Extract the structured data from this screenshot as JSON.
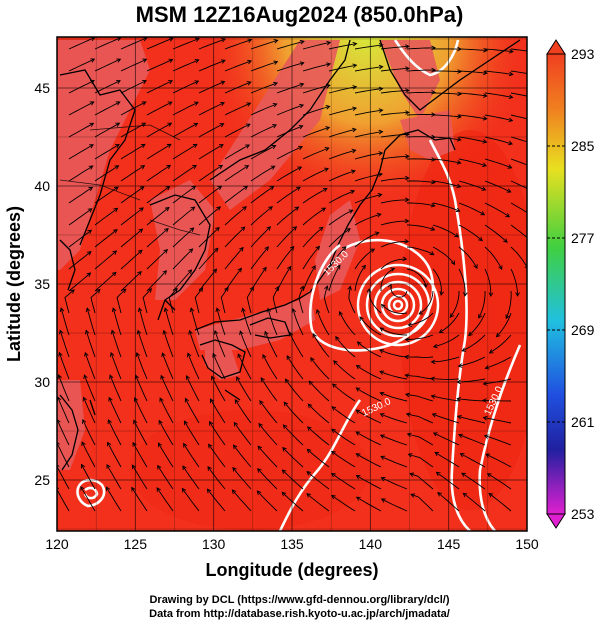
{
  "title": "MSM 12Z16Aug2024 (850.0hPa)",
  "map": {
    "xlabel": "Longitude (degrees)",
    "ylabel": "Latitude  (degrees)",
    "lon_ticks": [
      "120",
      "125",
      "130",
      "135",
      "140",
      "145",
      "150"
    ],
    "lat_ticks": [
      "25",
      "30",
      "35",
      "40",
      "45"
    ],
    "lon_range": [
      120,
      150
    ],
    "lat_range": [
      22.4,
      47.6
    ],
    "colorbar": {
      "min": 253,
      "max": 293,
      "ticks": [
        "293",
        "285",
        "277",
        "269",
        "261",
        "253"
      ]
    },
    "contour_labels": [
      "1530.0",
      "1530.0",
      "1530.0"
    ],
    "typhoon_center": {
      "lon": 142.0,
      "lat": 34.8
    },
    "colors": {
      "field_main": "#f2301c",
      "field_warm_sea": "#ef2a14",
      "land": "#e85a5a",
      "cool_north": "#f08a2a",
      "coldest_north": "#d7e83a"
    }
  },
  "credits": {
    "line1": "Drawing by DCL (https://www.gfd-dennou.org/library/dcl/)",
    "line2": "Data from http://database.rish.kyoto-u.ac.jp/arch/jmadata/"
  }
}
